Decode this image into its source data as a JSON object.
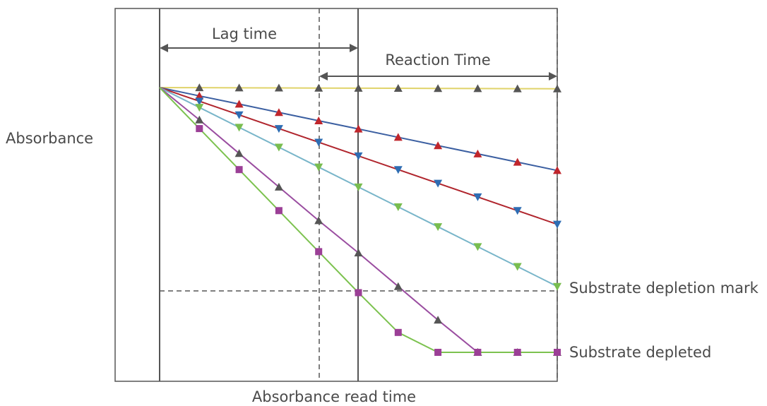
{
  "labels": {
    "y_axis": "Absorbance",
    "x_axis": "Absorbance read time",
    "lag_time": "Lag time",
    "reaction_time": "Reaction Time",
    "depletion_mark": "Substrate depletion mark",
    "depleted": "Substrate depleted"
  },
  "series": [
    {
      "color": "#e0d36a",
      "marker": "triangle-up",
      "marker_color": "#555555",
      "points": [
        [
          0,
          0
        ],
        [
          1,
          -0.01
        ],
        [
          2,
          -0.02
        ],
        [
          3,
          -0.03
        ],
        [
          4,
          -0.04
        ],
        [
          5,
          -0.05
        ],
        [
          6,
          -0.06
        ],
        [
          7,
          -0.07
        ],
        [
          8,
          -0.08
        ],
        [
          9,
          -0.09
        ],
        [
          10,
          -0.1
        ]
      ]
    },
    {
      "color": "#3b5fa1",
      "marker": "triangle-up",
      "marker_color": "#c0262c",
      "points": [
        [
          0,
          0
        ],
        [
          1,
          -0.67
        ],
        [
          2,
          -1.33
        ],
        [
          3,
          -2.0
        ],
        [
          4,
          -2.67
        ],
        [
          5,
          -3.33
        ],
        [
          6,
          -4.0
        ],
        [
          7,
          -4.67
        ],
        [
          8,
          -5.33
        ],
        [
          9,
          -6.0
        ],
        [
          10,
          -6.67
        ]
      ]
    },
    {
      "color": "#b0252d",
      "marker": "triangle-down",
      "marker_color": "#2e6db3",
      "points": [
        [
          0,
          0
        ],
        [
          1,
          -1.1
        ],
        [
          2,
          -2.2
        ],
        [
          3,
          -3.3
        ],
        [
          4,
          -4.4
        ],
        [
          5,
          -5.5
        ],
        [
          6,
          -6.6
        ],
        [
          7,
          -7.7
        ],
        [
          8,
          -8.8
        ],
        [
          9,
          -9.9
        ],
        [
          10,
          -11.0
        ]
      ]
    },
    {
      "color": "#78b5c9",
      "marker": "triangle-down",
      "marker_color": "#79bd4f",
      "points": [
        [
          0,
          0
        ],
        [
          1,
          -1.6
        ],
        [
          2,
          -3.2
        ],
        [
          3,
          -4.8
        ],
        [
          4,
          -6.4
        ],
        [
          5,
          -8.0
        ],
        [
          6,
          -9.6
        ],
        [
          7,
          -11.2
        ],
        [
          8,
          -12.8
        ],
        [
          9,
          -14.4
        ],
        [
          10,
          -16.0
        ]
      ]
    },
    {
      "color": "#9a4da0",
      "marker": "triangle-up",
      "marker_color": "#555555",
      "points": [
        [
          0,
          0
        ],
        [
          1,
          -2.6
        ],
        [
          2,
          -5.3
        ],
        [
          3,
          -8.0
        ],
        [
          4,
          -10.7
        ],
        [
          5,
          -13.3
        ],
        [
          6,
          -16.0
        ],
        [
          7,
          -18.7
        ],
        [
          8,
          -21.3
        ],
        [
          8,
          -21.3
        ],
        [
          9,
          -21.3
        ],
        [
          10,
          -21.3
        ]
      ]
    },
    {
      "color": "#7cc24f",
      "marker": "square",
      "marker_color": "#9b3f96",
      "points": [
        [
          0,
          0
        ],
        [
          1,
          -3.3
        ],
        [
          2,
          -6.6
        ],
        [
          3,
          -9.9
        ],
        [
          4,
          -13.2
        ],
        [
          5,
          -16.5
        ],
        [
          6,
          -19.7
        ],
        [
          7,
          -21.3
        ],
        [
          8,
          -21.3
        ],
        [
          9,
          -21.3
        ],
        [
          10,
          -21.3
        ]
      ]
    }
  ]
}
